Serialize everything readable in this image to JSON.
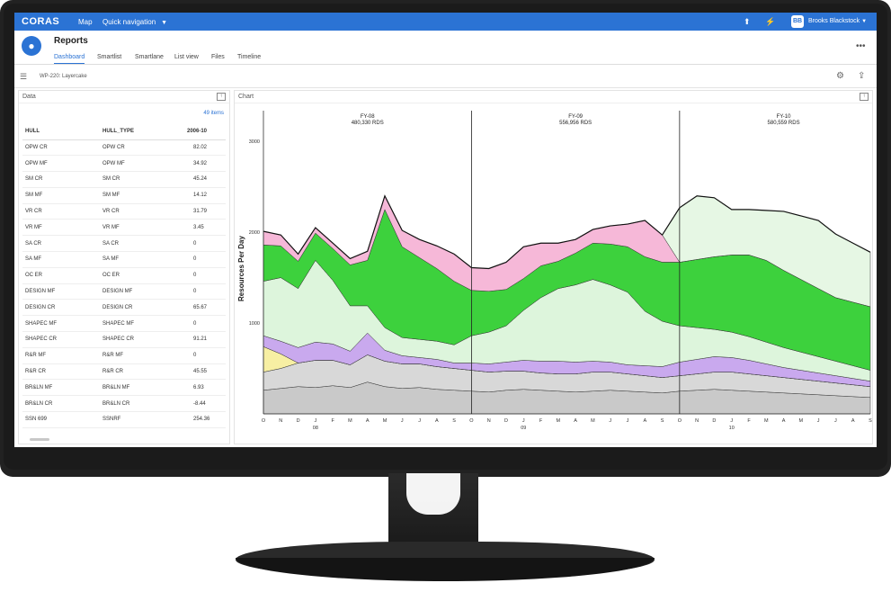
{
  "topbar": {
    "logo": "CORAS",
    "nav_map": "Map",
    "nav_quick": "Quick navigation",
    "user_initials": "BB",
    "user_name": "Brooks Blackstock"
  },
  "header": {
    "title": "Reports",
    "tabs": [
      {
        "label": "Dashboard",
        "active": true
      },
      {
        "label": "Smartlist",
        "active": false
      },
      {
        "label": "Smartlane",
        "active": false
      },
      {
        "label": "List view",
        "active": false
      },
      {
        "label": "Files",
        "active": false
      },
      {
        "label": "Timeline",
        "active": false
      }
    ]
  },
  "toolbar": {
    "breadcrumb": "WP-220: Layercake"
  },
  "data_panel": {
    "title": "Data",
    "item_count": "49 items",
    "columns": [
      "HULL",
      "HULL_TYPE",
      "2006-10"
    ],
    "rows": [
      [
        "OPW CR",
        "OPW CR",
        "82.02"
      ],
      [
        "OPW MF",
        "OPW MF",
        "34.92"
      ],
      [
        "SM CR",
        "SM CR",
        "45.24"
      ],
      [
        "SM MF",
        "SM MF",
        "14.12"
      ],
      [
        "VR CR",
        "VR CR",
        "31.79"
      ],
      [
        "VR MF",
        "VR MF",
        "3.45"
      ],
      [
        "SA CR",
        "SA CR",
        "0"
      ],
      [
        "SA MF",
        "SA MF",
        "0"
      ],
      [
        "OC ER",
        "OC ER",
        "0"
      ],
      [
        "DESIGN MF",
        "DESIGN MF",
        "0"
      ],
      [
        "DESIGN CR",
        "DESIGN CR",
        "65.67"
      ],
      [
        "SHAPEC MF",
        "SHAPEC MF",
        "0"
      ],
      [
        "SHAPEC CR",
        "SHAPEC CR",
        "91.21"
      ],
      [
        "R&R MF",
        "R&R MF",
        "0"
      ],
      [
        "R&R CR",
        "R&R CR",
        "45.55"
      ],
      [
        "BR&LN MF",
        "BR&LN MF",
        "6.93"
      ],
      [
        "BR&LN CR",
        "BR&LN CR",
        "-8.44"
      ],
      [
        "SSN 699",
        "SSNRF",
        "254.36"
      ]
    ]
  },
  "chart_panel": {
    "title": "Chart"
  },
  "chart_data": {
    "type": "area",
    "ylabel": "Resources Per Day",
    "ylim": [
      0,
      3200
    ],
    "yticks": [
      1000,
      2000,
      3000
    ],
    "fiscal_years": [
      {
        "label": "FY-08",
        "total": "480,330 RDS"
      },
      {
        "label": "FY-09",
        "total": "556,956 RDS"
      },
      {
        "label": "FY-10",
        "total": "580,559 RDS"
      }
    ],
    "x_months": [
      "O",
      "N",
      "D",
      "J",
      "F",
      "M",
      "A",
      "M",
      "J",
      "J",
      "A",
      "S",
      "O",
      "N",
      "D",
      "J",
      "F",
      "M",
      "A",
      "M",
      "J",
      "J",
      "A",
      "S",
      "O",
      "N",
      "D",
      "J",
      "F",
      "M",
      "A",
      "M",
      "J",
      "J",
      "A",
      "S"
    ],
    "x_years": [
      "08",
      "09",
      "10"
    ],
    "series": [
      {
        "color": "#c9c9c9",
        "values": [
          260,
          280,
          300,
          290,
          310,
          290,
          350,
          300,
          280,
          290,
          270,
          260,
          250,
          240,
          260,
          270,
          260,
          250,
          240,
          250,
          260,
          250,
          240,
          230,
          250,
          260,
          270,
          260,
          250,
          240,
          230,
          220,
          210,
          200,
          190,
          180
        ]
      },
      {
        "color": "#d8d8d8",
        "values": [
          200,
          220,
          260,
          300,
          280,
          250,
          300,
          280,
          270,
          260,
          250,
          240,
          230,
          220,
          210,
          200,
          190,
          190,
          200,
          210,
          200,
          190,
          180,
          170,
          170,
          180,
          190,
          200,
          190,
          180,
          170,
          160,
          150,
          140,
          130,
          120
        ]
      },
      {
        "color": "#f7efa3",
        "values": [
          280,
          160,
          0,
          0,
          0,
          0,
          0,
          0,
          0,
          0,
          0,
          0,
          0,
          0,
          0,
          0,
          0,
          0,
          0,
          0,
          0,
          0,
          0,
          0,
          0,
          0,
          0,
          0,
          0,
          0,
          0,
          0,
          0,
          0,
          0,
          0
        ]
      },
      {
        "color": "#c9a9ee",
        "values": [
          120,
          140,
          170,
          200,
          180,
          150,
          240,
          120,
          90,
          70,
          80,
          60,
          80,
          90,
          100,
          120,
          130,
          140,
          130,
          120,
          110,
          100,
          110,
          120,
          150,
          160,
          170,
          160,
          150,
          130,
          110,
          100,
          90,
          80,
          70,
          60
        ]
      },
      {
        "color": "#ddf5dc",
        "values": [
          600,
          700,
          650,
          900,
          700,
          500,
          300,
          250,
          200,
          200,
          200,
          200,
          300,
          350,
          400,
          550,
          700,
          800,
          850,
          900,
          850,
          800,
          600,
          500,
          400,
          350,
          300,
          280,
          260,
          240,
          220,
          200,
          180,
          160,
          140,
          120
        ]
      },
      {
        "color": "#3dd13d",
        "values": [
          400,
          350,
          300,
          300,
          350,
          450,
          500,
          1300,
          1000,
          900,
          800,
          700,
          500,
          450,
          400,
          350,
          350,
          300,
          350,
          400,
          450,
          500,
          600,
          650,
          700,
          750,
          800,
          850,
          900,
          900,
          850,
          800,
          750,
          700,
          700,
          700
        ]
      },
      {
        "color": "#f6b8d8",
        "values": [
          150,
          120,
          80,
          60,
          60,
          70,
          100,
          150,
          180,
          200,
          250,
          300,
          250,
          250,
          300,
          350,
          250,
          200,
          150,
          150,
          200,
          250,
          400,
          300,
          0,
          0,
          0,
          0,
          0,
          0,
          0,
          0,
          0,
          0,
          0,
          0
        ]
      },
      {
        "color": "#e6f7e4",
        "values": [
          0,
          0,
          0,
          0,
          0,
          0,
          0,
          0,
          0,
          0,
          0,
          0,
          0,
          0,
          0,
          0,
          0,
          0,
          0,
          0,
          0,
          0,
          0,
          0,
          600,
          700,
          650,
          500,
          500,
          550,
          650,
          700,
          750,
          700,
          650,
          600
        ]
      }
    ]
  }
}
